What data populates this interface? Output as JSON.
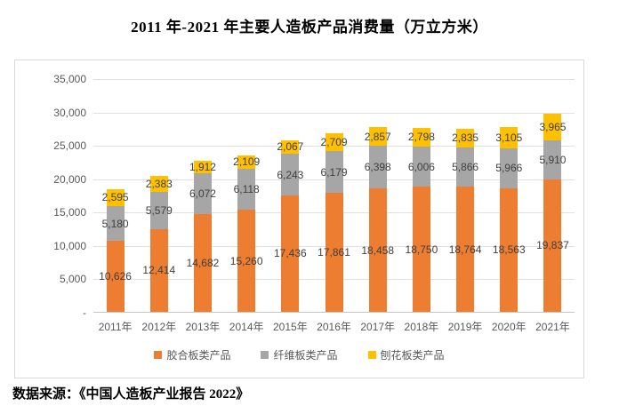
{
  "title": "2011 年-2021 年主要人造板产品消费量（万立方米）",
  "source": "数据来源：《中国人造板产业报告 2022》",
  "chart_data": {
    "type": "bar",
    "stacked": true,
    "title": "2011 年-2021 年主要人造板产品消费量（万立方米）",
    "categories": [
      "2011年",
      "2012年",
      "2013年",
      "2014年",
      "2015年",
      "2016年",
      "2017年",
      "2018年",
      "2019年",
      "2020年",
      "2021年"
    ],
    "series": [
      {
        "name": "胶合板类产品",
        "color": "#ED7D31",
        "values": [
          10626,
          12414,
          14682,
          15260,
          17436,
          17861,
          18458,
          18750,
          18764,
          18563,
          19837
        ]
      },
      {
        "name": "纤维板类产品",
        "color": "#A6A6A6",
        "values": [
          5180,
          5579,
          6072,
          6118,
          6243,
          6179,
          6398,
          6006,
          5866,
          5966,
          5910
        ]
      },
      {
        "name": "刨花板类产品",
        "color": "#FFC000",
        "values": [
          2595,
          2383,
          1912,
          2109,
          2067,
          2709,
          2857,
          2798,
          2835,
          3105,
          3965
        ]
      }
    ],
    "ylim": [
      0,
      35000
    ],
    "y_ticks": [
      "35,000",
      "30,000",
      "25,000",
      "20,000",
      "15,000",
      "10,000",
      "5,000",
      "-"
    ],
    "grid": true,
    "legend_position": "bottom",
    "data_labels": true,
    "gridline_color": "#e0e0e0",
    "axis_text_color": "#595959",
    "data_label_color": "#3f3f3f"
  }
}
